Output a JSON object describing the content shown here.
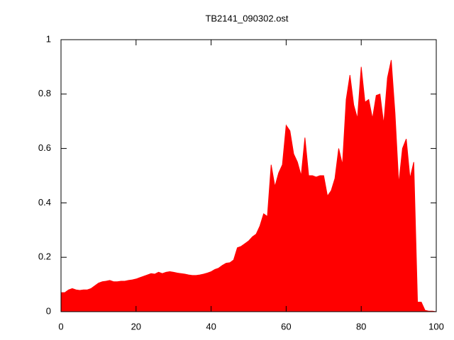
{
  "chart_data": {
    "type": "area",
    "title": "TB2141_090302.ost",
    "x": [
      0,
      1,
      2,
      3,
      4,
      5,
      6,
      7,
      8,
      9,
      10,
      11,
      12,
      13,
      14,
      15,
      16,
      17,
      18,
      19,
      20,
      21,
      22,
      23,
      24,
      25,
      26,
      27,
      28,
      29,
      30,
      31,
      32,
      33,
      34,
      35,
      36,
      37,
      38,
      39,
      40,
      41,
      42,
      43,
      44,
      45,
      46,
      47,
      48,
      49,
      50,
      51,
      52,
      53,
      54,
      55,
      56,
      57,
      58,
      59,
      60,
      61,
      62,
      63,
      64,
      65,
      66,
      67,
      68,
      69,
      70,
      71,
      72,
      73,
      74,
      75,
      76,
      77,
      78,
      79,
      80,
      81,
      82,
      83,
      84,
      85,
      86,
      87,
      88,
      89,
      90,
      91,
      92,
      93,
      94,
      95,
      96,
      97,
      98,
      99,
      100
    ],
    "values": [
      0.07,
      0.07,
      0.08,
      0.085,
      0.08,
      0.078,
      0.08,
      0.08,
      0.085,
      0.095,
      0.105,
      0.11,
      0.112,
      0.115,
      0.11,
      0.11,
      0.112,
      0.112,
      0.115,
      0.117,
      0.12,
      0.125,
      0.13,
      0.135,
      0.14,
      0.138,
      0.145,
      0.14,
      0.145,
      0.147,
      0.145,
      0.142,
      0.14,
      0.138,
      0.135,
      0.133,
      0.133,
      0.135,
      0.138,
      0.142,
      0.147,
      0.155,
      0.16,
      0.17,
      0.178,
      0.18,
      0.19,
      0.235,
      0.24,
      0.25,
      0.26,
      0.275,
      0.285,
      0.315,
      0.36,
      0.35,
      0.54,
      0.46,
      0.51,
      0.54,
      0.685,
      0.665,
      0.58,
      0.55,
      0.5,
      0.64,
      0.5,
      0.5,
      0.495,
      0.5,
      0.5,
      0.425,
      0.445,
      0.49,
      0.6,
      0.54,
      0.78,
      0.87,
      0.76,
      0.71,
      0.9,
      0.77,
      0.78,
      0.71,
      0.795,
      0.8,
      0.69,
      0.86,
      0.925,
      0.73,
      0.47,
      0.6,
      0.635,
      0.49,
      0.55,
      0.035,
      0.035,
      0.005,
      0.002,
      0.002,
      0
    ],
    "color": "#ff0000",
    "xlim": [
      0,
      100
    ],
    "xticks": [
      0,
      20,
      40,
      60,
      80,
      100
    ],
    "ylim": [
      0,
      1
    ],
    "yticks": [
      0,
      0.2,
      0.4,
      0.6,
      0.8,
      1
    ]
  }
}
